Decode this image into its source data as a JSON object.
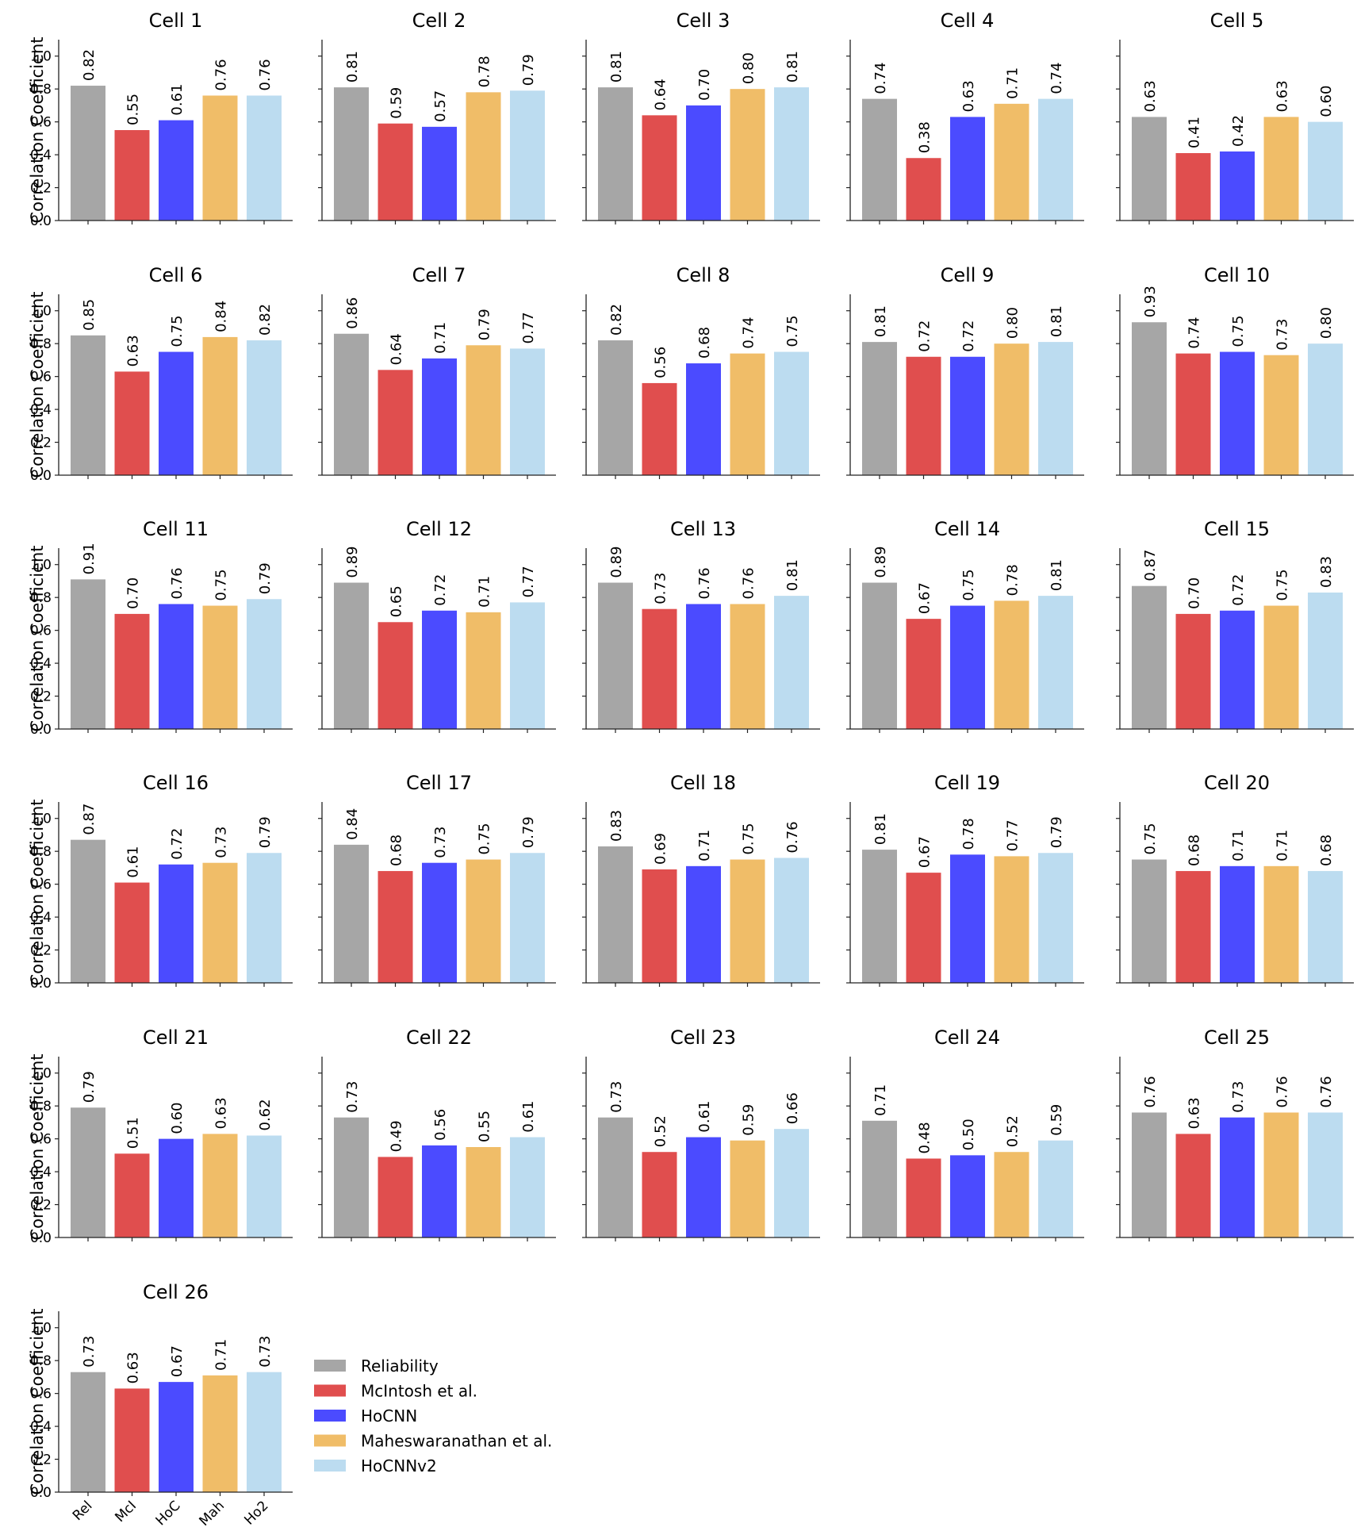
{
  "legend": {
    "placement": "lower-middle",
    "entries": [
      {
        "name": "Reliability",
        "color": "#a6a6a6"
      },
      {
        "name": "McIntosh et al.",
        "color": "#e04e4e"
      },
      {
        "name": "HoCNN",
        "color": "#4b4bff"
      },
      {
        "name": "Maheswaranathan et al.",
        "color": "#f0bd68"
      },
      {
        "name": "HoCNNv2",
        "color": "#bcdcf0"
      }
    ]
  },
  "chart_data": {
    "type": "bar",
    "layout": "small-multiples",
    "categories": [
      "Rel",
      "McI",
      "HoC",
      "Mah",
      "Ho2"
    ],
    "ylabel": "Correlation Coefficient",
    "ylim": [
      0,
      1.1
    ],
    "yticks": [
      "0.0",
      "0.2",
      "0.4",
      "0.6",
      "0.8",
      "1.0"
    ],
    "grid": false,
    "panels": [
      {
        "title": "Cell 1",
        "values": [
          0.82,
          0.55,
          0.61,
          0.76,
          0.76
        ]
      },
      {
        "title": "Cell 2",
        "values": [
          0.81,
          0.59,
          0.57,
          0.78,
          0.79
        ]
      },
      {
        "title": "Cell 3",
        "values": [
          0.81,
          0.64,
          0.7,
          0.8,
          0.81
        ]
      },
      {
        "title": "Cell 4",
        "values": [
          0.74,
          0.38,
          0.63,
          0.71,
          0.74
        ]
      },
      {
        "title": "Cell 5",
        "values": [
          0.63,
          0.41,
          0.42,
          0.63,
          0.6
        ]
      },
      {
        "title": "Cell 6",
        "values": [
          0.85,
          0.63,
          0.75,
          0.84,
          0.82
        ]
      },
      {
        "title": "Cell 7",
        "values": [
          0.86,
          0.64,
          0.71,
          0.79,
          0.77
        ]
      },
      {
        "title": "Cell 8",
        "values": [
          0.82,
          0.56,
          0.68,
          0.74,
          0.75
        ]
      },
      {
        "title": "Cell 9",
        "values": [
          0.81,
          0.72,
          0.72,
          0.8,
          0.81
        ]
      },
      {
        "title": "Cell 10",
        "values": [
          0.93,
          0.74,
          0.75,
          0.73,
          0.8
        ]
      },
      {
        "title": "Cell 11",
        "values": [
          0.91,
          0.7,
          0.76,
          0.75,
          0.79
        ]
      },
      {
        "title": "Cell 12",
        "values": [
          0.89,
          0.65,
          0.72,
          0.71,
          0.77
        ]
      },
      {
        "title": "Cell 13",
        "values": [
          0.89,
          0.73,
          0.76,
          0.76,
          0.81
        ]
      },
      {
        "title": "Cell 14",
        "values": [
          0.89,
          0.67,
          0.75,
          0.78,
          0.81
        ]
      },
      {
        "title": "Cell 15",
        "values": [
          0.87,
          0.7,
          0.72,
          0.75,
          0.83
        ]
      },
      {
        "title": "Cell 16",
        "values": [
          0.87,
          0.61,
          0.72,
          0.73,
          0.79
        ]
      },
      {
        "title": "Cell 17",
        "values": [
          0.84,
          0.68,
          0.73,
          0.75,
          0.79
        ]
      },
      {
        "title": "Cell 18",
        "values": [
          0.83,
          0.69,
          0.71,
          0.75,
          0.76
        ]
      },
      {
        "title": "Cell 19",
        "values": [
          0.81,
          0.67,
          0.78,
          0.77,
          0.79
        ]
      },
      {
        "title": "Cell 20",
        "values": [
          0.75,
          0.68,
          0.71,
          0.71,
          0.68
        ]
      },
      {
        "title": "Cell 21",
        "values": [
          0.79,
          0.51,
          0.6,
          0.63,
          0.62
        ]
      },
      {
        "title": "Cell 22",
        "values": [
          0.73,
          0.49,
          0.56,
          0.55,
          0.61
        ]
      },
      {
        "title": "Cell 23",
        "values": [
          0.73,
          0.52,
          0.61,
          0.59,
          0.66
        ]
      },
      {
        "title": "Cell 24",
        "values": [
          0.71,
          0.48,
          0.5,
          0.52,
          0.59
        ]
      },
      {
        "title": "Cell 25",
        "values": [
          0.76,
          0.63,
          0.73,
          0.76,
          0.76
        ]
      },
      {
        "title": "Cell 26",
        "values": [
          0.73,
          0.63,
          0.67,
          0.71,
          0.73
        ]
      }
    ]
  }
}
